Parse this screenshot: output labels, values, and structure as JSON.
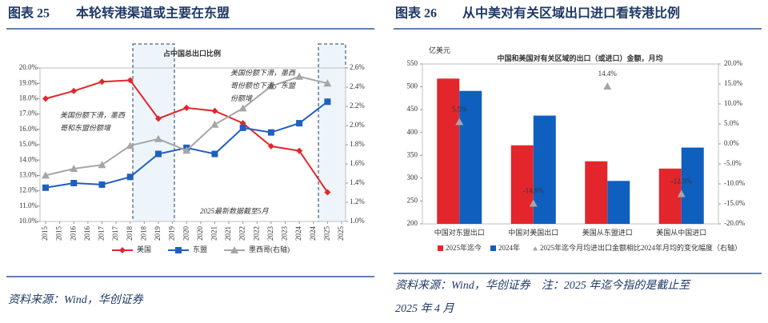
{
  "panels": [
    {
      "figure": "图表 25",
      "caption": "本轮转港渠道或主要在东盟",
      "source": [
        "资料来源：Wind，华创证券"
      ]
    },
    {
      "figure": "图表 26",
      "caption": "从中美对有关区域出口进口看转港比例",
      "source": [
        "资料来源：Wind，华创证券　注：2025 年迄今指的是截止至",
        "2025 年 4 月"
      ]
    }
  ],
  "chart_data": [
    {
      "type": "line",
      "title": "占中国总出口比例",
      "x": [
        2015,
        2016,
        2017,
        2018,
        2019,
        2020,
        2021,
        2022,
        2023,
        2024,
        2025
      ],
      "xlim": [
        2015,
        2025.5
      ],
      "xticks": [
        2015,
        {
          "value": 2015.5,
          "label": "2015"
        },
        2016,
        {
          "value": 2016.5,
          "label": "2016"
        },
        2017,
        {
          "value": 2017.5,
          "label": "2017"
        },
        2018,
        {
          "value": 2018.5,
          "label": "2018"
        },
        2019,
        {
          "value": 2019.5,
          "label": "2019"
        },
        2020,
        {
          "value": 2020.5,
          "label": "2020"
        },
        2021,
        {
          "value": 2021.5,
          "label": "2021"
        },
        2022,
        {
          "value": 2022.5,
          "label": "2022"
        },
        2023,
        {
          "value": 2023.5,
          "label": "2023"
        },
        2024,
        {
          "value": 2024.5,
          "label": "2024"
        },
        2025,
        {
          "value": 2025.5,
          "label": "2025"
        }
      ],
      "ylim": [
        10,
        20
      ],
      "yticks": [
        {
          "value": 10,
          "label": "10.0%"
        },
        {
          "value": 11,
          "label": "11.0%"
        },
        {
          "value": 12,
          "label": "12.0%"
        },
        {
          "value": 13,
          "label": "13.0%"
        },
        {
          "value": 14,
          "label": "14.0%"
        },
        {
          "value": 15,
          "label": "15.0%"
        },
        {
          "value": 16,
          "label": "16.0%"
        },
        {
          "value": 17,
          "label": "17.0%"
        },
        {
          "value": 18,
          "label": "18.0%"
        },
        {
          "value": 19,
          "label": "19.0%"
        },
        {
          "value": 20,
          "label": "20.0%"
        }
      ],
      "y2lim": [
        1.0,
        2.6
      ],
      "y2ticks": [
        {
          "value": 1.0,
          "label": "1.0%"
        },
        {
          "value": 1.2,
          "label": "1.2%"
        },
        {
          "value": 1.4,
          "label": "1.4%"
        },
        {
          "value": 1.6,
          "label": "1.6%"
        },
        {
          "value": 1.8,
          "label": "1.8%"
        },
        {
          "value": 2.0,
          "label": "2.0%"
        },
        {
          "value": 2.2,
          "label": "2.2%"
        },
        {
          "value": 2.4,
          "label": "2.4%"
        },
        {
          "value": 2.6,
          "label": "2.6%"
        }
      ],
      "series": [
        {
          "name": "美国",
          "color": "#e3262c",
          "marker": "diamond",
          "values": [
            18.0,
            18.5,
            19.1,
            19.2,
            16.7,
            17.4,
            17.2,
            16.4,
            14.9,
            14.6,
            11.9
          ]
        },
        {
          "name": "东盟",
          "color": "#1f5fbf",
          "marker": "square",
          "values": [
            12.2,
            12.5,
            12.4,
            12.9,
            14.4,
            14.8,
            14.4,
            16.1,
            15.8,
            16.4,
            17.8
          ]
        },
        {
          "name": "墨西哥(右轴)",
          "color": "#a6a6a6",
          "marker": "triangle",
          "axis": "y2",
          "values": [
            1.48,
            1.55,
            1.59,
            1.79,
            1.86,
            1.74,
            2.01,
            2.18,
            2.41,
            2.51,
            2.44
          ]
        }
      ],
      "annotations": [
        [
          "美国份额下滑，墨西",
          "哥和东盟份额增"
        ],
        [
          "美国份额下滑，墨西",
          "哥份额也下滑，东盟",
          "份额增"
        ],
        [
          "2025最新数据截至5月"
        ]
      ]
    },
    {
      "type": "bar",
      "title": "中国和美国对有关区域的出口（或进口）金额，月均",
      "ylabel": "亿美元",
      "categories": [
        "中国对东盟出口",
        "中国对美国出口",
        "美国从东盟进口",
        "美国从中国进口"
      ],
      "ylim": [
        200,
        550
      ],
      "yticks": [
        200,
        250,
        300,
        350,
        400,
        450,
        500,
        550
      ],
      "y2lim": [
        -20,
        20
      ],
      "y2ticks": [
        {
          "value": -20,
          "label": "-20.0%"
        },
        {
          "value": -15,
          "label": "-15.0%"
        },
        {
          "value": -10,
          "label": "-10.0%"
        },
        {
          "value": -5,
          "label": "-5.0%"
        },
        {
          "value": 0,
          "label": "0.0%"
        },
        {
          "value": 5,
          "label": "5.0%"
        },
        {
          "value": 10,
          "label": "10.0%"
        },
        {
          "value": 15,
          "label": "15.0%"
        },
        {
          "value": 20,
          "label": "20.0%"
        }
      ],
      "series": [
        {
          "name": "2025年迄今",
          "color": "#e3262c",
          "values": [
            518,
            372,
            337,
            321
          ]
        },
        {
          "name": "2024年",
          "color": "#0f5fbf",
          "values": [
            491,
            437,
            294,
            367
          ]
        },
        {
          "name": "2025年迄今月均进出口金额相比2024年月均的变化幅度（右轴）",
          "type": "scatter",
          "axis": "y2",
          "color": "#a6a6a6",
          "marker": "triangle",
          "values": [
            5.5,
            -14.9,
            14.4,
            -12.5
          ],
          "value_labels": [
            "5.5%",
            "-14.9%",
            "14.4%",
            "-12.5%"
          ]
        }
      ]
    }
  ]
}
